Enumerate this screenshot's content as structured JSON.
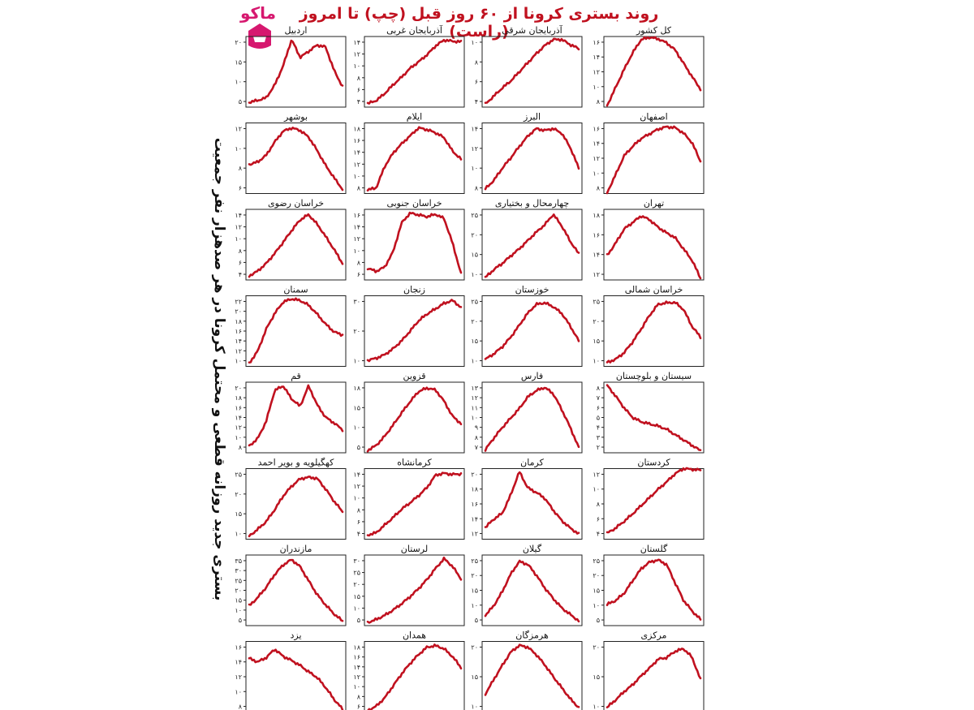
{
  "page": {
    "title": "روند بستری کرونا از ۶۰ روز قبل (چپ) تا امروز (راست)",
    "y_axis_label": "بستری جدید روزانه قطعی و محتمل کرونا در هر صدهزار نفر جمعیت",
    "logo_text": "ماكو",
    "line_color": "#c0111f",
    "logo_color": "#d6186f"
  },
  "chart_data": [
    {
      "type": "line",
      "title": "کل کشور",
      "ticks": [
        "۱۶",
        "۱۴",
        "۱۲",
        "۱۰",
        "۸"
      ],
      "ylim": [
        8,
        17
      ],
      "values": [
        8.2,
        10.5,
        12.8,
        14.9,
        16.6,
        16.9,
        16.7,
        16.2,
        15.3,
        13.6,
        11.9,
        10.3
      ]
    },
    {
      "type": "line",
      "title": "آذربایجان شرقی",
      "ticks": [
        "۱۰",
        "۸",
        "۶",
        "۴"
      ],
      "ylim": [
        3.5,
        10.5
      ],
      "values": [
        3.8,
        4.6,
        5.4,
        6.1,
        7.0,
        7.9,
        8.8,
        9.6,
        10.2,
        10.2,
        9.7,
        9.3
      ]
    },
    {
      "type": "line",
      "title": "آذربایجان غربی",
      "ticks": [
        "۱۴",
        "۱۲",
        "۱۰",
        "۸",
        "۶",
        "۴"
      ],
      "ylim": [
        3.5,
        15.5
      ],
      "values": [
        4.1,
        4.6,
        5.8,
        7.3,
        8.6,
        10.1,
        11.2,
        12.4,
        13.9,
        14.9,
        14.7,
        14.6
      ]
    },
    {
      "type": "line",
      "title": "اردبیل",
      "ticks": [
        "۲۰",
        "۱۵",
        "۱۰",
        "۵"
      ],
      "ylim": [
        5,
        24
      ],
      "values": [
        6.3,
        6.8,
        7.5,
        10.9,
        16.1,
        23.2,
        18.4,
        20.0,
        21.7,
        21.2,
        14.9,
        10.5
      ]
    },
    {
      "type": "line",
      "title": "اصفهان",
      "ticks": [
        "۱۶",
        "۱۴",
        "۱۲",
        "۱۰",
        "۸"
      ],
      "ylim": [
        8,
        17
      ],
      "values": [
        8.1,
        10.4,
        12.8,
        14.0,
        15.0,
        15.6,
        16.2,
        16.5,
        16.4,
        15.7,
        14.5,
        12.1
      ]
    },
    {
      "type": "line",
      "title": "البرز",
      "ticks": [
        "۱۴",
        "۱۲",
        "۱۰",
        "۸"
      ],
      "ylim": [
        7.5,
        15
      ],
      "values": [
        8.0,
        8.9,
        10.2,
        11.3,
        12.5,
        13.6,
        14.4,
        14.2,
        14.4,
        13.9,
        12.4,
        10.2
      ]
    },
    {
      "type": "line",
      "title": "ایلام",
      "ticks": [
        "۱۸",
        "۱۶",
        "۱۴",
        "۱۲",
        "۱۰",
        "۸"
      ],
      "ylim": [
        7.5,
        19
      ],
      "values": [
        8.1,
        8.4,
        11.9,
        14.1,
        15.6,
        16.9,
        18.2,
        17.9,
        17.4,
        16.6,
        14.4,
        13.1
      ]
    },
    {
      "type": "line",
      "title": "بوشهر",
      "ticks": [
        "۱۲",
        "۱۰",
        "۸",
        "۶"
      ],
      "ylim": [
        5,
        13.5
      ],
      "values": [
        8.5,
        8.8,
        9.6,
        11.2,
        12.5,
        12.9,
        12.6,
        11.8,
        10.2,
        8.4,
        6.9,
        5.5
      ]
    },
    {
      "type": "line",
      "title": "تهران",
      "ticks": [
        "۱۸",
        "۱۶",
        "۱۴",
        "۱۲"
      ],
      "ylim": [
        11.5,
        19
      ],
      "values": [
        14.1,
        15.4,
        16.9,
        17.6,
        18.3,
        17.9,
        17.1,
        16.5,
        16.0,
        14.8,
        13.6,
        11.7
      ]
    },
    {
      "type": "line",
      "title": "چهارمحال و بختیاری",
      "ticks": [
        "۲۵",
        "۲۰",
        "۱۵",
        "۱۰"
      ],
      "ylim": [
        9.5,
        26.5
      ],
      "values": [
        10.1,
        12.0,
        13.5,
        15.3,
        17.0,
        19.0,
        21.0,
        22.8,
        25.3,
        22.5,
        18.8,
        15.8
      ]
    },
    {
      "type": "line",
      "title": "خراسان جنوبی",
      "ticks": [
        "۱۶",
        "۱۴",
        "۱۲",
        "۱۰",
        "۸",
        "۶"
      ],
      "ylim": [
        5.5,
        17
      ],
      "values": [
        7.4,
        6.9,
        7.6,
        10.1,
        14.8,
        16.4,
        16.1,
        15.8,
        16.2,
        15.5,
        11.5,
        6.5
      ]
    },
    {
      "type": "line",
      "title": "خراسان رضوی",
      "ticks": [
        "۱۴",
        "۱۲",
        "۱۰",
        "۸",
        "۶",
        "۴"
      ],
      "ylim": [
        3.5,
        15.5
      ],
      "values": [
        4.2,
        5.0,
        6.3,
        8.0,
        9.9,
        11.9,
        13.7,
        14.6,
        13.0,
        10.9,
        8.7,
        6.3
      ]
    },
    {
      "type": "line",
      "title": "خراسان شمالی",
      "ticks": [
        "۲۵",
        "۲۰",
        "۱۵",
        "۱۰"
      ],
      "ylim": [
        9,
        27
      ],
      "values": [
        10.0,
        10.8,
        12.5,
        15.2,
        18.5,
        22.0,
        24.8,
        25.2,
        25.3,
        23.5,
        19.2,
        16.5
      ]
    },
    {
      "type": "line",
      "title": "خوزستان",
      "ticks": [
        "۲۵",
        "۲۰",
        "۱۵",
        "۱۰"
      ],
      "ylim": [
        9,
        27
      ],
      "values": [
        10.8,
        12.2,
        14.0,
        16.5,
        19.5,
        22.6,
        24.8,
        25.2,
        24.2,
        22.5,
        19.3,
        15.5
      ]
    },
    {
      "type": "line",
      "title": "زنجان",
      "ticks": [
        "۳۰",
        "۲۰",
        "۱۰"
      ],
      "ylim": [
        5,
        31
      ],
      "values": [
        7.2,
        8.0,
        9.3,
        11.5,
        14.4,
        18.0,
        21.8,
        24.3,
        26.2,
        28.2,
        29.3,
        26.7
      ]
    },
    {
      "type": "line",
      "title": "سمنان",
      "ticks": [
        "۲۲",
        "۲۰",
        "۱۸",
        "۱۶",
        "۱۴",
        "۱۲",
        "۱۰"
      ],
      "ylim": [
        9.5,
        23
      ],
      "values": [
        10.1,
        12.4,
        16.6,
        19.6,
        21.8,
        22.4,
        22.1,
        21.2,
        19.5,
        17.6,
        16.1,
        15.5
      ]
    },
    {
      "type": "line",
      "title": "سیستان و بلوچستان",
      "ticks": [
        "۸",
        "۷",
        "۶",
        "۵",
        "۴",
        "۳",
        "۲"
      ],
      "ylim": [
        2,
        8.6
      ],
      "values": [
        8.3,
        7.3,
        6.2,
        5.3,
        4.9,
        4.7,
        4.5,
        4.2,
        3.7,
        3.2,
        2.7,
        2.2
      ]
    },
    {
      "type": "line",
      "title": "فارس",
      "ticks": [
        "۱۳",
        "۱۲",
        "۱۱",
        "۱۰",
        "۹",
        "۸",
        "۷"
      ],
      "ylim": [
        6.8,
        13.5
      ],
      "values": [
        7.1,
        8.2,
        9.2,
        10.1,
        11.0,
        12.1,
        12.7,
        13.0,
        12.4,
        10.9,
        9.2,
        7.3
      ]
    },
    {
      "type": "line",
      "title": "قزوین",
      "ticks": [
        "۱۸",
        "۱۵",
        "۱۰",
        "۵"
      ],
      "ylim": [
        4.5,
        19
      ],
      "values": [
        5.0,
        6.0,
        7.9,
        10.2,
        12.7,
        15.0,
        17.1,
        17.8,
        17.4,
        15.1,
        12.0,
        10.5
      ]
    },
    {
      "type": "line",
      "title": "قم",
      "ticks": [
        "۲۰",
        "۱۸",
        "۱۶",
        "۱۴",
        "۱۲",
        "۱۰",
        "۸"
      ],
      "ylim": [
        7.5,
        21
      ],
      "values": [
        8.8,
        10.2,
        13.5,
        19.4,
        20.3,
        17.8,
        16.4,
        20.3,
        16.7,
        14.3,
        13.2,
        11.9
      ]
    },
    {
      "type": "line",
      "title": "کردستان",
      "ticks": [
        "۱۲",
        "۱۰",
        "۸",
        "۶",
        "۴"
      ],
      "ylim": [
        3.5,
        13
      ],
      "values": [
        4.3,
        5.0,
        5.9,
        6.9,
        8.0,
        9.1,
        10.2,
        11.2,
        12.3,
        13.0,
        12.9,
        12.8
      ]
    },
    {
      "type": "line",
      "title": "کرمان",
      "ticks": [
        "۲۰",
        "۱۸",
        "۱۶",
        "۱۴",
        "۱۲"
      ],
      "ylim": [
        11.5,
        21
      ],
      "values": [
        13.1,
        14.2,
        15.0,
        17.5,
        20.6,
        18.4,
        17.8,
        17.0,
        15.4,
        14.0,
        13.0,
        12.2
      ]
    },
    {
      "type": "line",
      "title": "کرمانشاه",
      "ticks": [
        "۱۴",
        "۱۲",
        "۱۰",
        "۸",
        "۶",
        "۴"
      ],
      "ylim": [
        3.5,
        15.5
      ],
      "values": [
        4.2,
        4.6,
        5.9,
        7.2,
        8.6,
        9.7,
        10.9,
        12.3,
        14.4,
        14.7,
        14.5,
        14.6
      ]
    },
    {
      "type": "line",
      "title": "کهگیلویه و بویر احمد",
      "ticks": [
        "۲۵",
        "۲۰",
        "۱۵",
        "۱۰"
      ],
      "ylim": [
        9,
        27
      ],
      "values": [
        9.8,
        11.5,
        13.5,
        16.5,
        20.0,
        22.5,
        24.4,
        24.8,
        24.5,
        21.8,
        18.7,
        16.0
      ]
    },
    {
      "type": "line",
      "title": "گلستان",
      "ticks": [
        "۲۵",
        "۲۰",
        "۱۵",
        "۱۰",
        "۵"
      ],
      "ylim": [
        4,
        28
      ],
      "values": [
        11.2,
        12.5,
        15.0,
        19.2,
        23.3,
        25.6,
        26.3,
        24.8,
        18.6,
        12.6,
        9.0,
        6.1
      ]
    },
    {
      "type": "line",
      "title": "گیلان",
      "ticks": [
        "۲۵",
        "۲۰",
        "۱۵",
        "۱۰",
        "۵"
      ],
      "ylim": [
        4,
        28
      ],
      "values": [
        7.5,
        10.8,
        15.6,
        21.6,
        25.8,
        24.8,
        21.2,
        16.8,
        13.2,
        10.0,
        7.8,
        5.6
      ]
    },
    {
      "type": "line",
      "title": "لرستان",
      "ticks": [
        "۳۰",
        "۲۵",
        "۲۰",
        "۱۵",
        "۱۰",
        "۵"
      ],
      "ylim": [
        4,
        33
      ],
      "values": [
        5.3,
        6.5,
        8.2,
        10.4,
        13.0,
        15.9,
        19.2,
        23.0,
        27.5,
        31.5,
        28.3,
        23.2
      ]
    },
    {
      "type": "line",
      "title": "مازندران",
      "ticks": [
        "۳۵",
        "۳۰",
        "۲۵",
        "۲۰",
        "۱۵",
        "۱۰",
        "۵"
      ],
      "ylim": [
        4,
        38
      ],
      "values": [
        13.5,
        17.5,
        22.4,
        28.6,
        33.2,
        35.8,
        32.4,
        25.6,
        19.0,
        14.0,
        9.6,
        6.2
      ]
    },
    {
      "type": "line",
      "title": "مرکزی",
      "ticks": [
        "۲۰",
        "۱۵",
        "۱۰"
      ],
      "ylim": [
        9,
        22.5
      ],
      "values": [
        9.9,
        11.3,
        12.9,
        14.2,
        15.9,
        17.4,
        19.1,
        19.4,
        20.6,
        21.1,
        19.5,
        15.2
      ]
    },
    {
      "type": "line",
      "title": "هرمزگان",
      "ticks": [
        "۲۰",
        "۱۵",
        "۱۰"
      ],
      "ylim": [
        6.5,
        22.5
      ],
      "values": [
        10.6,
        13.9,
        17.1,
        20.1,
        21.6,
        21.2,
        19.5,
        17.2,
        14.5,
        12.0,
        9.5,
        7.5
      ]
    },
    {
      "type": "line",
      "title": "همدان",
      "ticks": [
        "۱۸",
        "۱۶",
        "۱۴",
        "۱۲",
        "۱۰",
        "۸",
        "۶"
      ],
      "ylim": [
        5.5,
        19
      ],
      "values": [
        5.8,
        6.6,
        8.2,
        10.5,
        12.8,
        14.8,
        16.5,
        17.9,
        18.2,
        17.6,
        16.1,
        14.0
      ]
    },
    {
      "type": "line",
      "title": "یزد",
      "ticks": [
        "۱۶",
        "۱۴",
        "۱۲",
        "۱۰",
        "۸"
      ],
      "ylim": [
        7.5,
        17.5
      ],
      "values": [
        15.1,
        14.6,
        15.2,
        16.4,
        15.4,
        14.8,
        14.1,
        13.2,
        12.4,
        11.0,
        9.3,
        7.9
      ]
    }
  ]
}
